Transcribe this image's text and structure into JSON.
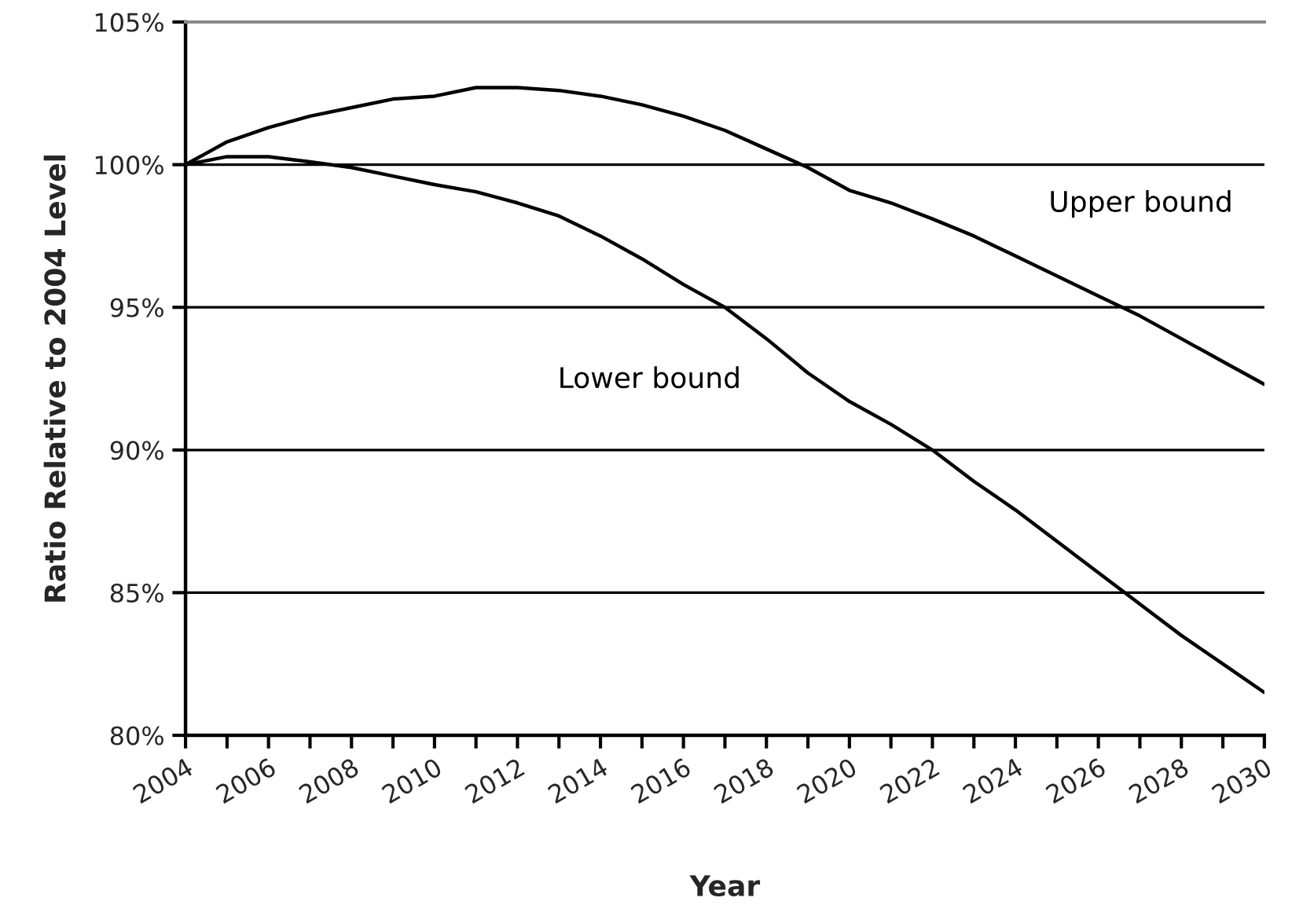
{
  "chart_data": {
    "type": "line",
    "xlabel": "Year",
    "ylabel": "Ratio Relative to 2004 Level",
    "x": [
      2004,
      2005,
      2006,
      2007,
      2008,
      2009,
      2010,
      2011,
      2012,
      2013,
      2014,
      2015,
      2016,
      2017,
      2018,
      2019,
      2020,
      2021,
      2022,
      2023,
      2024,
      2025,
      2026,
      2027,
      2028,
      2029,
      2030
    ],
    "series": [
      {
        "name": "Upper bound",
        "color": "#000000",
        "values": [
          100,
          100.8,
          101.3,
          101.7,
          102.0,
          102.3,
          102.4,
          102.7,
          102.7,
          102.6,
          102.4,
          102.1,
          101.7,
          101.2,
          100.55,
          99.9,
          99.1,
          98.66,
          98.1,
          97.5,
          96.8,
          96.1,
          95.4,
          94.7,
          93.9,
          93.1,
          92.3
        ]
      },
      {
        "name": "Lower bound",
        "color": "#000000",
        "values": [
          100,
          100.28,
          100.28,
          100.1,
          99.9,
          99.6,
          99.3,
          99.05,
          98.66,
          98.2,
          97.5,
          96.7,
          95.8,
          95.0,
          93.9,
          92.7,
          91.7,
          90.9,
          90.0,
          88.9,
          87.9,
          86.8,
          85.7,
          84.6,
          83.5,
          82.5,
          81.5
        ]
      }
    ],
    "xlim": [
      2004,
      2030
    ],
    "xticks": [
      2004,
      {
        "value": 2005,
        "label": null
      },
      2006,
      {
        "value": 2007,
        "label": null
      },
      2008,
      {
        "value": 2009,
        "label": null
      },
      2010,
      {
        "value": 2011,
        "label": null
      },
      2012,
      {
        "value": 2013,
        "label": null
      },
      2014,
      {
        "value": 2015,
        "label": null
      },
      2016,
      {
        "value": 2017,
        "label": null
      },
      2018,
      {
        "value": 2019,
        "label": null
      },
      2020,
      {
        "value": 2021,
        "label": null
      },
      2022,
      {
        "value": 2023,
        "label": null
      },
      2024,
      {
        "value": 2025,
        "label": null
      },
      2026,
      {
        "value": 2027,
        "label": null
      },
      2028,
      {
        "value": 2029,
        "label": null
      },
      2030
    ],
    "ylim": [
      80,
      105
    ],
    "yticks": [
      {
        "value": 80,
        "label": "80%"
      },
      {
        "value": 85,
        "label": "85%"
      },
      {
        "value": 90,
        "label": "90%"
      },
      {
        "value": 95,
        "label": "95%"
      },
      {
        "value": 100,
        "label": "100%"
      },
      {
        "value": 105,
        "label": "105%"
      }
    ],
    "grid": "y",
    "legend": false,
    "marker": "none",
    "line_style": "solid"
  }
}
